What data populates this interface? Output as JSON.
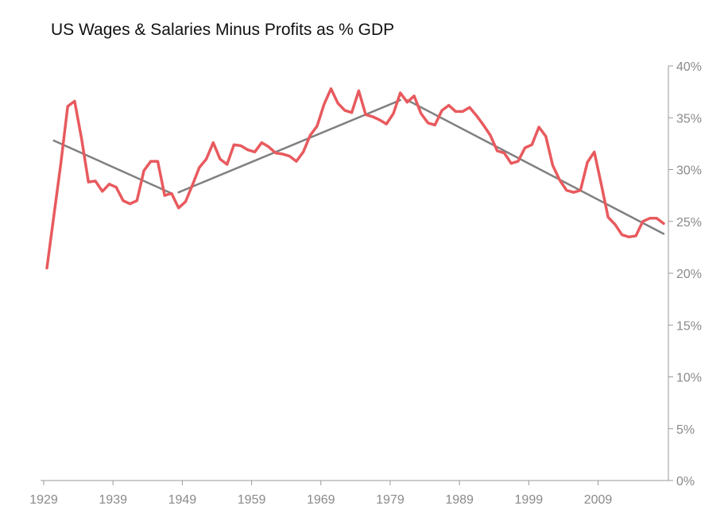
{
  "chart_data": {
    "type": "line",
    "title": "US Wages & Salaries Minus Profits as % GDP",
    "xlabel": "",
    "ylabel": "",
    "x_ticks": [
      "1929",
      "1939",
      "1949",
      "1959",
      "1969",
      "1979",
      "1989",
      "1999",
      "2009"
    ],
    "y_ticks": [
      "0%",
      "5%",
      "10%",
      "15%",
      "20%",
      "25%",
      "30%",
      "35%",
      "40%"
    ],
    "xlim": [
      1929,
      2018
    ],
    "ylim": [
      0,
      40
    ],
    "y_axis_position": "right",
    "grid": false,
    "legend": "none",
    "series": [
      {
        "color": "#e85a5e",
        "points": [
          [
            1929,
            20.5
          ],
          [
            1930,
            25.5
          ],
          [
            1931,
            30.5
          ],
          [
            1932,
            36.1
          ],
          [
            1933,
            36.6
          ],
          [
            1934,
            33.0
          ],
          [
            1935,
            28.8
          ],
          [
            1936,
            28.9
          ],
          [
            1937,
            27.9
          ],
          [
            1938,
            28.6
          ],
          [
            1939,
            28.3
          ],
          [
            1940,
            27.0
          ],
          [
            1941,
            26.7
          ],
          [
            1942,
            27.0
          ],
          [
            1943,
            29.9
          ],
          [
            1944,
            30.8
          ],
          [
            1945,
            30.8
          ],
          [
            1946,
            27.5
          ],
          [
            1947,
            27.7
          ],
          [
            1948,
            26.3
          ],
          [
            1949,
            26.9
          ],
          [
            1950,
            28.5
          ],
          [
            1951,
            30.2
          ],
          [
            1952,
            31.0
          ],
          [
            1953,
            32.6
          ],
          [
            1954,
            31.0
          ],
          [
            1955,
            30.5
          ],
          [
            1956,
            32.4
          ],
          [
            1957,
            32.3
          ],
          [
            1958,
            31.9
          ],
          [
            1959,
            31.7
          ],
          [
            1960,
            32.6
          ],
          [
            1961,
            32.2
          ],
          [
            1962,
            31.6
          ],
          [
            1963,
            31.5
          ],
          [
            1964,
            31.3
          ],
          [
            1965,
            30.8
          ],
          [
            1966,
            31.7
          ],
          [
            1967,
            33.3
          ],
          [
            1968,
            34.2
          ],
          [
            1969,
            36.3
          ],
          [
            1970,
            37.8
          ],
          [
            1971,
            36.4
          ],
          [
            1972,
            35.7
          ],
          [
            1973,
            35.5
          ],
          [
            1974,
            37.6
          ],
          [
            1975,
            35.3
          ],
          [
            1976,
            35.1
          ],
          [
            1977,
            34.8
          ],
          [
            1978,
            34.4
          ],
          [
            1979,
            35.4
          ],
          [
            1980,
            37.4
          ],
          [
            1981,
            36.5
          ],
          [
            1982,
            37.1
          ],
          [
            1983,
            35.4
          ],
          [
            1984,
            34.5
          ],
          [
            1985,
            34.3
          ],
          [
            1986,
            35.7
          ],
          [
            1987,
            36.2
          ],
          [
            1988,
            35.6
          ],
          [
            1989,
            35.6
          ],
          [
            1990,
            36.0
          ],
          [
            1991,
            35.2
          ],
          [
            1992,
            34.3
          ],
          [
            1993,
            33.3
          ],
          [
            1994,
            31.8
          ],
          [
            1995,
            31.6
          ],
          [
            1996,
            30.6
          ],
          [
            1997,
            30.8
          ],
          [
            1998,
            32.1
          ],
          [
            1999,
            32.4
          ],
          [
            2000,
            34.1
          ],
          [
            2001,
            33.2
          ],
          [
            2002,
            30.4
          ],
          [
            2003,
            29.0
          ],
          [
            2004,
            28.0
          ],
          [
            2005,
            27.8
          ],
          [
            2006,
            28.0
          ],
          [
            2007,
            30.7
          ],
          [
            2008,
            31.7
          ],
          [
            2009,
            28.6
          ],
          [
            2010,
            25.4
          ],
          [
            2011,
            24.7
          ],
          [
            2012,
            23.7
          ],
          [
            2013,
            23.5
          ],
          [
            2014,
            23.6
          ],
          [
            2015,
            25.0
          ],
          [
            2016,
            25.3
          ],
          [
            2017,
            25.3
          ],
          [
            2018,
            24.8
          ]
        ]
      },
      {
        "color": "#808080",
        "segments": [
          [
            [
              1930,
              32.8
            ],
            [
              1947,
              27.7
            ]
          ],
          [
            [
              1948,
              27.8
            ],
            [
              1980,
              36.7
            ]
          ],
          [
            [
              1981,
              36.7
            ],
            [
              2018,
              23.8
            ]
          ]
        ]
      }
    ]
  }
}
